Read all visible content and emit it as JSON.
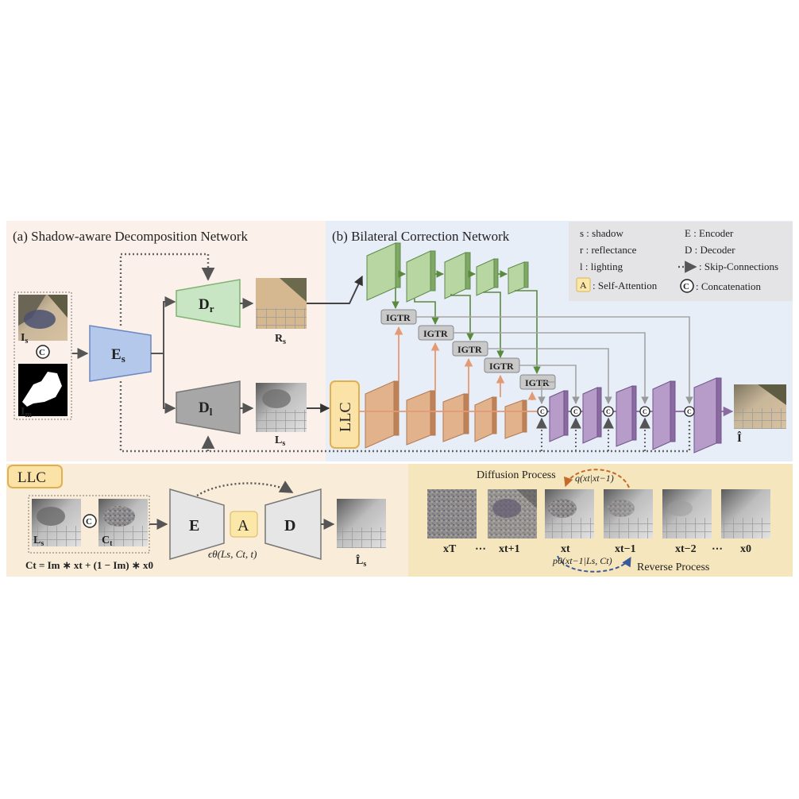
{
  "panel_a": {
    "title": "(a) Shadow-aware Decomposition Network"
  },
  "panel_b": {
    "title": "(b) Bilateral Correction Network"
  },
  "legend": {
    "s": "s  : shadow",
    "r": "r  : reflectance",
    "l": "l  : lighting",
    "e": "E : Encoder",
    "d": "D : Decoder",
    "skip": ": Skip-Connections",
    "attention_key": "A",
    "attention": ": Self-Attention",
    "concat_key": "C",
    "concat": ": Concatenation"
  },
  "decomposition": {
    "input_shadow": "I",
    "input_shadow_sub": "s",
    "input_mask": "I",
    "input_mask_sub": "m",
    "encoder": "E",
    "encoder_sub": "s",
    "decoder_r": "D",
    "decoder_r_sub": "r",
    "decoder_l": "D",
    "decoder_l_sub": "l",
    "output_r": "R",
    "output_r_sub": "s",
    "output_l": "L",
    "output_l_sub": "s"
  },
  "correction": {
    "llc": "LLC",
    "igtr_label": "IGTR",
    "output": "Î"
  },
  "llc_panel": {
    "title": "LLC",
    "input_l": "L",
    "input_l_sub": "s",
    "input_c": "C",
    "input_c_sub": "t",
    "encoder": "E",
    "attention": "A",
    "decoder": "D",
    "noise_fn": "ϵθ(Ls, Ct, t)",
    "output": "L̂",
    "output_sub": "s",
    "formula": "Ct = Im ∗ xt + (1 − Im) ∗ x0"
  },
  "diffusion": {
    "forward_label": "Diffusion Process",
    "forward_fn": "q(xt|xt−1)",
    "reverse_label": "Reverse Process",
    "reverse_fn": "pθ(xt−1|Ls, Ct)",
    "states": [
      "xT",
      "⋯",
      "xt+1",
      "xt",
      "xt−1",
      "xt−2",
      "⋯",
      "x0"
    ]
  },
  "colors": {
    "panel_a_bg": "#fbf1ea",
    "panel_b_bg": "#e8eef8",
    "legend_bg": "#e4e4e6",
    "bottom_left_bg": "#f9ecd9",
    "bottom_right_bg": "#f6e6bd",
    "encoder_blue": "#b4c8ec",
    "decoder_green": "#c8e6c4",
    "decoder_gray": "#a7a7a7",
    "green_block": "#9fc28a",
    "orange_block": "#d9a57c",
    "purple_block": "#a487b6",
    "llc_fill": "#fbe2a6",
    "forward_orange": "#c46a2a",
    "reverse_blue": "#3b5a9a"
  }
}
